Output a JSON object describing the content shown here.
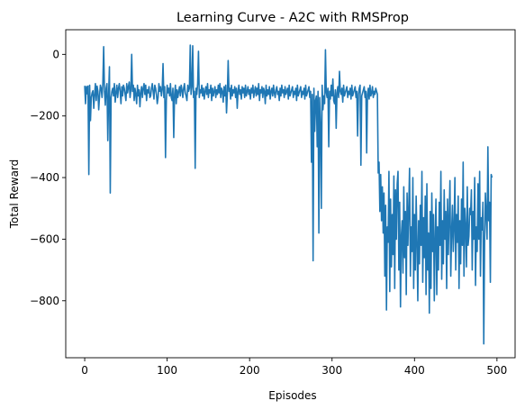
{
  "chart_data": {
    "type": "line",
    "title": "Learning Curve - A2C with RMSProp",
    "xlabel": "Episodes",
    "ylabel": "Total Reward",
    "xlim": [
      -23,
      522
    ],
    "ylim": [
      -985,
      80
    ],
    "xticks": [
      0,
      100,
      200,
      300,
      400,
      500
    ],
    "yticks": [
      0,
      -200,
      -400,
      -600,
      -800
    ],
    "grid": false,
    "legend": "none",
    "series": [
      {
        "color": "#1f77b4",
        "x_start": 0,
        "x_step": 1,
        "values": [
          -102,
          -160,
          -104,
          -128,
          -103,
          -390,
          -100,
          -215,
          -140,
          -125,
          -118,
          -175,
          -130,
          -95,
          -150,
          -103,
          -120,
          -180,
          -135,
          -100,
          -110,
          -140,
          -95,
          25,
          -120,
          -165,
          -110,
          -95,
          -280,
          -130,
          -40,
          -450,
          -140,
          -120,
          -110,
          -135,
          -95,
          -155,
          -125,
          -100,
          -140,
          -110,
          -95,
          -120,
          -160,
          -105,
          -135,
          -100,
          -110,
          -130,
          -150,
          -95,
          -125,
          -105,
          -90,
          -140,
          -115,
          0,
          -120,
          -100,
          -150,
          -110,
          -130,
          -160,
          -100,
          -135,
          -115,
          -170,
          -125,
          -105,
          -140,
          -110,
          -95,
          -130,
          -100,
          -150,
          -115,
          -125,
          -105,
          -140,
          -135,
          -110,
          -95,
          -120,
          -145,
          -100,
          -110,
          -130,
          -160,
          -140,
          -95,
          -120,
          -105,
          -135,
          -115,
          -30,
          -140,
          -105,
          -335,
          -150,
          -100,
          -125,
          -110,
          -135,
          -95,
          -140,
          -150,
          -110,
          -270,
          -130,
          -100,
          -160,
          -115,
          -140,
          -120,
          -105,
          -135,
          -100,
          -115,
          -140,
          -110,
          -95,
          -125,
          -135,
          -150,
          -100,
          -120,
          -110,
          30,
          -130,
          -105,
          28,
          -140,
          -120,
          -370,
          -110,
          -130,
          -95,
          10,
          -140,
          -115,
          -125,
          -100,
          -135,
          -110,
          -145,
          -120,
          -105,
          -130,
          -95,
          -140,
          -115,
          -125,
          -100,
          -150,
          -110,
          -135,
          -120,
          -105,
          -140,
          -115,
          -130,
          -100,
          -125,
          -95,
          -140,
          -110,
          -120,
          -155,
          -105,
          -135,
          -100,
          -190,
          -130,
          -20,
          -120,
          -110,
          -145,
          -100,
          -135,
          -115,
          -125,
          -105,
          -140,
          -110,
          -175,
          -120,
          -100,
          -130,
          -115,
          -145,
          -105,
          -125,
          -110,
          -140,
          -100,
          -135,
          -120,
          -105,
          -130,
          -115,
          -145,
          -110,
          -125,
          -100,
          -140,
          -120,
          -105,
          -135,
          -110,
          -130,
          -95,
          -150,
          -115,
          -125,
          -105,
          -140,
          -110,
          -120,
          -160,
          -100,
          -135,
          -115,
          -130,
          -105,
          -145,
          -120,
          -110,
          -135,
          -100,
          -125,
          -140,
          -115,
          -105,
          -130,
          -120,
          -150,
          -110,
          -135,
          -100,
          -125,
          -115,
          -140,
          -105,
          -130,
          -120,
          -110,
          -145,
          -100,
          -135,
          -125,
          -115,
          -105,
          -140,
          -120,
          -130,
          -110,
          -150,
          -100,
          -135,
          -125,
          -115,
          -105,
          -140,
          -120,
          -130,
          -110,
          -145,
          -100,
          -135,
          -125,
          -115,
          -105,
          -140,
          -120,
          -350,
          -130,
          -670,
          -110,
          -250,
          -150,
          -135,
          -300,
          -120,
          -580,
          -140,
          -225,
          -500,
          -100,
          -180,
          -135,
          -160,
          15,
          -125,
          -140,
          -110,
          -300,
          -120,
          -145,
          -100,
          -135,
          -80,
          -150,
          -160,
          -115,
          -240,
          -125,
          -105,
          -140,
          -55,
          -120,
          -130,
          -110,
          -155,
          -100,
          -135,
          -125,
          -115,
          -105,
          -140,
          -120,
          -130,
          -110,
          -145,
          -100,
          -135,
          -125,
          -115,
          -105,
          -140,
          -120,
          -265,
          -130,
          -110,
          -100,
          -360,
          -135,
          -125,
          -115,
          -105,
          -140,
          -120,
          -320,
          -130,
          -110,
          -145,
          -100,
          -135,
          -125,
          -105,
          -140,
          -120,
          -130,
          -110,
          -120,
          -130,
          -385,
          -350,
          -510,
          -390,
          -540,
          -430,
          -580,
          -450,
          -720,
          -490,
          -830,
          -560,
          -610,
          -380,
          -770,
          -470,
          -690,
          -520,
          -650,
          -395,
          -760,
          -440,
          -600,
          -420,
          -380,
          -700,
          -480,
          -820,
          -590,
          -540,
          -710,
          -430,
          -660,
          -510,
          -780,
          -450,
          -620,
          -500,
          -370,
          -720,
          -560,
          -640,
          -400,
          -760,
          -520,
          -700,
          -460,
          -610,
          -800,
          -540,
          -680,
          -490,
          -620,
          -380,
          -740,
          -530,
          -660,
          -460,
          -780,
          -420,
          -700,
          -580,
          -840,
          -510,
          -760,
          -450,
          -640,
          -520,
          -800,
          -600,
          -470,
          -780,
          -560,
          -700,
          -480,
          -620,
          -380,
          -730,
          -540,
          -680,
          -440,
          -600,
          -510,
          -760,
          -470,
          -650,
          -530,
          -410,
          -720,
          -580,
          -490,
          -640,
          -560,
          -400,
          -700,
          -520,
          -610,
          -460,
          -760,
          -540,
          -680,
          -470,
          -620,
          -350,
          -720,
          -500,
          -560,
          -690,
          -430,
          -620,
          -590,
          -500,
          -520,
          -440,
          -700,
          -510,
          -600,
          -400,
          -750,
          -560,
          -640,
          -420,
          -600,
          -380,
          -720,
          -530,
          -570,
          -480,
          -940,
          -610,
          -450,
          -520,
          -600,
          -300,
          -540,
          -480,
          -740,
          -390,
          -400
        ]
      }
    ]
  }
}
